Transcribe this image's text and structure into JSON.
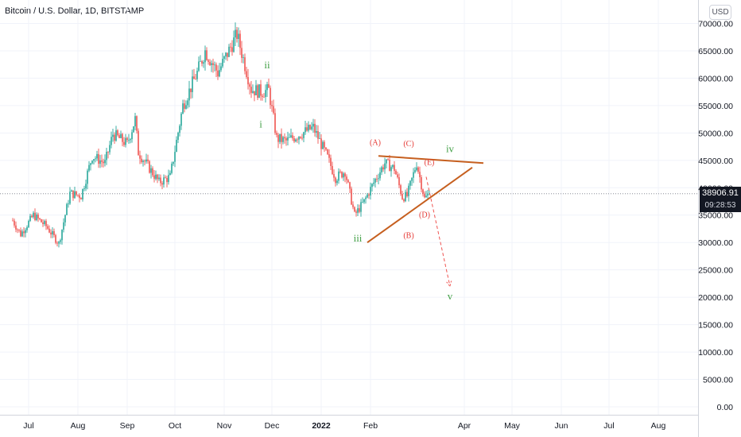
{
  "header": {
    "symbol_title": "Bitcoin / U.S. Dollar, 1D, BITSTAMP"
  },
  "axis": {
    "currency_label": "USD"
  },
  "price_tag": {
    "price": "38906.91",
    "countdown": "09:28:53"
  },
  "chart_data": {
    "type": "candlestick",
    "title": "Bitcoin / U.S. Dollar, 1D, BITSTAMP",
    "ylim": [
      0,
      70000
    ],
    "y_ticks": [
      "0.00",
      "5000.00",
      "10000.00",
      "15000.00",
      "20000.00",
      "25000.00",
      "30000.00",
      "35000.00",
      "40000.00",
      "45000.00",
      "50000.00",
      "55000.00",
      "60000.00",
      "65000.00",
      "70000.00"
    ],
    "x_ticks": [
      "Jul",
      "Aug",
      "Sep",
      "Oct",
      "Nov",
      "Dec",
      "2022",
      "Feb",
      "Apr",
      "May",
      "Jun",
      "Jul",
      "Aug"
    ],
    "last_price": 38906.91,
    "up_color": "#26a69a",
    "down_color": "#ef5350",
    "price_path": [
      [
        "2021-06-21",
        34000
      ],
      [
        "2021-06-26",
        31500
      ],
      [
        "2021-07-04",
        35000
      ],
      [
        "2021-07-12",
        33000
      ],
      [
        "2021-07-20",
        29800
      ],
      [
        "2021-07-27",
        39000
      ],
      [
        "2021-08-03",
        38500
      ],
      [
        "2021-08-10",
        45800
      ],
      [
        "2021-08-18",
        44500
      ],
      [
        "2021-08-23",
        49800
      ],
      [
        "2021-09-01",
        48000
      ],
      [
        "2021-09-06",
        52500
      ],
      [
        "2021-09-08",
        46500
      ],
      [
        "2021-09-21",
        41000
      ],
      [
        "2021-09-28",
        42000
      ],
      [
        "2021-10-06",
        55000
      ],
      [
        "2021-10-15",
        61000
      ],
      [
        "2021-10-20",
        65000
      ],
      [
        "2021-10-28",
        61000
      ],
      [
        "2021-11-09",
        68000
      ],
      [
        "2021-11-18",
        58000
      ],
      [
        "2021-11-24",
        57500
      ],
      [
        "2021-11-29",
        57800
      ],
      [
        "2021-12-04",
        49000
      ],
      [
        "2021-12-10",
        48500
      ],
      [
        "2021-12-27",
        51000
      ],
      [
        "2022-01-05",
        45500
      ],
      [
        "2022-01-10",
        41800
      ],
      [
        "2022-01-16",
        43000
      ],
      [
        "2022-01-22",
        35000
      ],
      [
        "2022-01-28",
        37500
      ],
      [
        "2022-02-04",
        41500
      ],
      [
        "2022-02-10",
        44500
      ],
      [
        "2022-02-16",
        43500
      ],
      [
        "2022-02-21",
        38300
      ],
      [
        "2022-02-24",
        38500
      ],
      [
        "2022-03-02",
        44500
      ],
      [
        "2022-03-07",
        38000
      ],
      [
        "2022-03-10",
        38906.91
      ]
    ],
    "trendlines": [
      {
        "from": [
          "2022-02-06",
          45800
        ],
        "to": [
          "2022-04-13",
          44500
        ],
        "color": "#c65f1f"
      },
      {
        "from": [
          "2022-01-30",
          30000
        ],
        "to": [
          "2022-04-06",
          43700
        ],
        "color": "#c65f1f"
      }
    ],
    "projection": {
      "from": [
        "2022-03-08",
        42000
      ],
      "to": [
        "2022-03-23",
        22000
      ],
      "color": "#ef5350"
    },
    "annotations": [
      {
        "text": "i",
        "x": "2021-11-24",
        "y": 51000,
        "color": "#43a047"
      },
      {
        "text": "ii",
        "x": "2021-11-28",
        "y": 61800,
        "color": "#43a047"
      },
      {
        "text": "iii",
        "x": "2022-01-24",
        "y": 30200,
        "color": "#43a047"
      },
      {
        "text": "iv",
        "x": "2022-03-23",
        "y": 46500,
        "color": "#43a047"
      },
      {
        "text": "v",
        "x": "2022-03-23",
        "y": 19600,
        "color": "#43a047"
      },
      {
        "text": "(A)",
        "x": "2022-02-04",
        "y": 47800,
        "color": "#e53935"
      },
      {
        "text": "(B)",
        "x": "2022-02-25",
        "y": 30800,
        "color": "#e53935"
      },
      {
        "text": "(C)",
        "x": "2022-02-25",
        "y": 47600,
        "color": "#e53935"
      },
      {
        "text": "(D)",
        "x": "2022-03-07",
        "y": 34600,
        "color": "#e53935"
      },
      {
        "text": "(E)",
        "x": "2022-03-10",
        "y": 44200,
        "color": "#e53935"
      }
    ]
  }
}
